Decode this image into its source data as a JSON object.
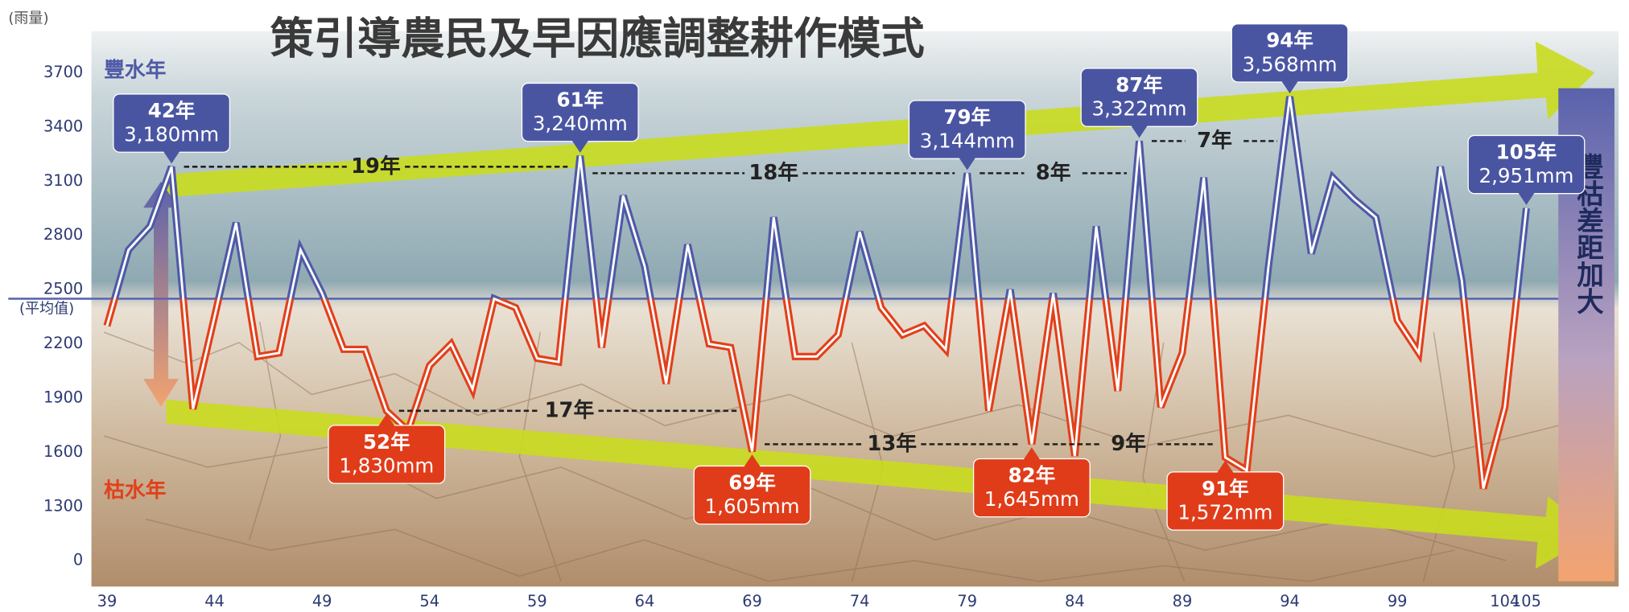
{
  "chart_data": {
    "type": "line",
    "title": "策引導農民及早因應調整耕作模式",
    "y_label": "(雨量)",
    "high_label": "豐水年",
    "low_label": "枯水年",
    "side_label": "豐枯差距加大",
    "color_above": "#4f5aa6",
    "color_below": "#e2401b",
    "x": [
      39,
      40,
      41,
      42,
      43,
      44,
      45,
      46,
      47,
      48,
      49,
      50,
      51,
      52,
      53,
      54,
      55,
      56,
      57,
      58,
      59,
      60,
      61,
      62,
      63,
      64,
      65,
      66,
      67,
      68,
      69,
      70,
      71,
      72,
      73,
      74,
      75,
      76,
      77,
      78,
      79,
      80,
      81,
      82,
      83,
      84,
      85,
      86,
      87,
      88,
      89,
      90,
      91,
      92,
      93,
      94,
      95,
      96,
      97,
      98,
      99,
      100,
      101,
      102,
      103,
      104,
      105
    ],
    "values": [
      2300,
      2720,
      2850,
      3180,
      1840,
      2350,
      2870,
      2130,
      2150,
      2720,
      2480,
      2170,
      2170,
      1830,
      1720,
      2080,
      2200,
      1950,
      2450,
      2400,
      2120,
      2100,
      3240,
      2180,
      3020,
      2630,
      1980,
      2750,
      2200,
      2180,
      1605,
      2900,
      2130,
      2130,
      2250,
      2820,
      2400,
      2250,
      2300,
      2170,
      3144,
      1830,
      2500,
      1645,
      2480,
      1580,
      2850,
      1940,
      3322,
      1850,
      2150,
      3120,
      1572,
      1500,
      2620,
      3568,
      2700,
      3120,
      3000,
      2900,
      2330,
      2150,
      3180,
      2550,
      1400,
      1850,
      2951
    ],
    "label_years": [
      null,
      null,
      null,
      "42年",
      null,
      null,
      null,
      null,
      null,
      null,
      null,
      null,
      null,
      "52年",
      null,
      null,
      null,
      null,
      null,
      null,
      null,
      null,
      "61年",
      null,
      null,
      null,
      null,
      null,
      null,
      null,
      "69年",
      null,
      null,
      null,
      null,
      null,
      null,
      null,
      null,
      null,
      "79年",
      null,
      null,
      "82年",
      null,
      null,
      null,
      null,
      "87年",
      null,
      null,
      null,
      "91年",
      null,
      null,
      "94年",
      null,
      null,
      null,
      null,
      null,
      null,
      null,
      null,
      null,
      null,
      "105年"
    ],
    "value_labels": [
      null,
      null,
      null,
      "3,180mm",
      null,
      null,
      null,
      null,
      null,
      null,
      null,
      null,
      null,
      "1,830mm",
      null,
      null,
      null,
      null,
      null,
      null,
      null,
      null,
      "3,240mm",
      null,
      null,
      null,
      null,
      null,
      null,
      null,
      "1,605mm",
      null,
      null,
      null,
      null,
      null,
      null,
      null,
      null,
      null,
      "3,144mm",
      null,
      null,
      "1,645mm",
      null,
      null,
      null,
      null,
      "3,322mm",
      null,
      null,
      null,
      "1,572mm",
      null,
      null,
      "3,568mm",
      null,
      null,
      null,
      null,
      null,
      null,
      null,
      null,
      null,
      null,
      "2,951mm"
    ],
    "upper_intervals": [
      "19年",
      "18年",
      "8年",
      "7年"
    ],
    "lower_intervals": [
      "17年",
      "13年",
      "9年"
    ],
    "average": {
      "value": 2450,
      "label": "(平均值)"
    },
    "xlim": [
      37,
      107
    ],
    "xticks": [
      39,
      44,
      49,
      54,
      59,
      64,
      69,
      74,
      79,
      84,
      89,
      94,
      99,
      104,
      105
    ],
    "ylim": [
      0,
      3700
    ],
    "yticks": [
      0,
      1300,
      1600,
      1900,
      2200,
      2500,
      2800,
      3100,
      3400,
      3700
    ],
    "axis_break": true,
    "grid": false
  }
}
